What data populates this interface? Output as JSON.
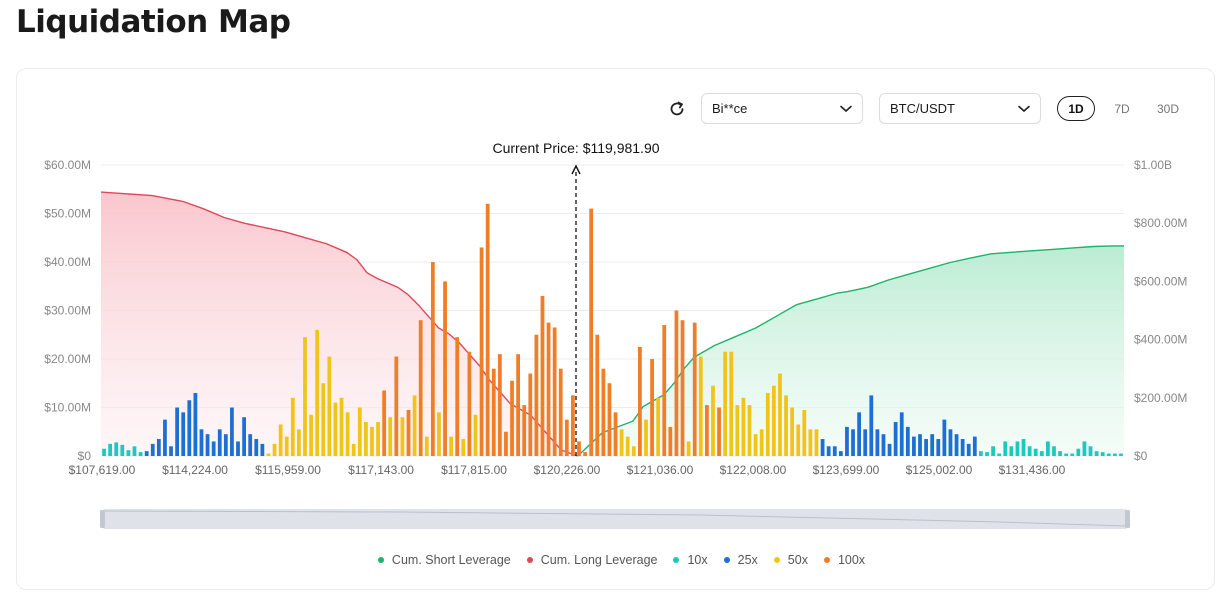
{
  "page": {
    "title": "Liquidation Map"
  },
  "controls": {
    "exchange_value": "Bi**ce",
    "pair_value": "BTC/USDT",
    "timeframes": [
      {
        "label": "1D",
        "active": true
      },
      {
        "label": "7D",
        "active": false
      },
      {
        "label": "30D",
        "active": false
      }
    ],
    "icons": {
      "refresh": "refresh-icon",
      "dropdown": "chevron-down-icon"
    }
  },
  "chart_data": {
    "type": "bar",
    "current_price_label": "Current Price: $119,981.90",
    "current_price": 119981.9,
    "y_left": {
      "ticks": [
        "$0",
        "$10.00M",
        "$20.00M",
        "$30.00M",
        "$40.00M",
        "$50.00M",
        "$60.00M"
      ],
      "max": 60
    },
    "y_right": {
      "ticks": [
        "$0",
        "$200.00M",
        "$400.00M",
        "$600.00M",
        "$800.00M",
        "$1.00B"
      ],
      "max": 1000
    },
    "x_tick_labels": [
      "$107,619.00",
      "$114,224.00",
      "$115,959.00",
      "$117,143.00",
      "$117,815.00",
      "$120,226.00",
      "$121,036.00",
      "$122,008.00",
      "$123,699.00",
      "$125,002.00",
      "$131,436.00"
    ],
    "grid": true,
    "legend_position": "bottom",
    "series_colors": {
      "Cum. Short Leverage": "#1db36b",
      "Cum. Long Leverage": "#e0475a",
      "10x": "#1ec8c0",
      "25x": "#1e6fd4",
      "50x": "#f0c419",
      "100x": "#f07d27"
    },
    "legend": [
      "Cum. Short Leverage",
      "Cum. Long Leverage",
      "10x",
      "25x",
      "50x",
      "100x"
    ],
    "bars": [
      {
        "l": "10x",
        "v": 1.5
      },
      {
        "l": "10x",
        "v": 2.5
      },
      {
        "l": "10x",
        "v": 2.8
      },
      {
        "l": "10x",
        "v": 2.3
      },
      {
        "l": "10x",
        "v": 1.2
      },
      {
        "l": "10x",
        "v": 2
      },
      {
        "l": "10x",
        "v": 0.8
      },
      {
        "l": "25x",
        "v": 1
      },
      {
        "l": "25x",
        "v": 2.5
      },
      {
        "l": "25x",
        "v": 3.5
      },
      {
        "l": "25x",
        "v": 7.5
      },
      {
        "l": "25x",
        "v": 2
      },
      {
        "l": "25x",
        "v": 10
      },
      {
        "l": "25x",
        "v": 9
      },
      {
        "l": "25x",
        "v": 11.5
      },
      {
        "l": "25x",
        "v": 13
      },
      {
        "l": "25x",
        "v": 5.5
      },
      {
        "l": "25x",
        "v": 4.5
      },
      {
        "l": "25x",
        "v": 3
      },
      {
        "l": "25x",
        "v": 5.5
      },
      {
        "l": "25x",
        "v": 4.5
      },
      {
        "l": "25x",
        "v": 10
      },
      {
        "l": "25x",
        "v": 3
      },
      {
        "l": "25x",
        "v": 8
      },
      {
        "l": "25x",
        "v": 4.5
      },
      {
        "l": "25x",
        "v": 3.5
      },
      {
        "l": "25x",
        "v": 2.5
      },
      {
        "l": "50x",
        "v": 0.5
      },
      {
        "l": "50x",
        "v": 2.5
      },
      {
        "l": "50x",
        "v": 6.5
      },
      {
        "l": "50x",
        "v": 4
      },
      {
        "l": "50x",
        "v": 12
      },
      {
        "l": "50x",
        "v": 5.5
      },
      {
        "l": "50x",
        "v": 24.5
      },
      {
        "l": "50x",
        "v": 8.5
      },
      {
        "l": "50x",
        "v": 26
      },
      {
        "l": "50x",
        "v": 15
      },
      {
        "l": "50x",
        "v": 20.5
      },
      {
        "l": "50x",
        "v": 11
      },
      {
        "l": "50x",
        "v": 12
      },
      {
        "l": "50x",
        "v": 9
      },
      {
        "l": "50x",
        "v": 2.5
      },
      {
        "l": "50x",
        "v": 10
      },
      {
        "l": "50x",
        "v": 7
      },
      {
        "l": "50x",
        "v": 6
      },
      {
        "l": "50x",
        "v": 7
      },
      {
        "l": "100x",
        "v": 13.5
      },
      {
        "l": "50x",
        "v": 8
      },
      {
        "l": "100x",
        "v": 20.5
      },
      {
        "l": "50x",
        "v": 8
      },
      {
        "l": "100x",
        "v": 9.5
      },
      {
        "l": "50x",
        "v": 12.5
      },
      {
        "l": "100x",
        "v": 28
      },
      {
        "l": "50x",
        "v": 4
      },
      {
        "l": "100x",
        "v": 40
      },
      {
        "l": "50x",
        "v": 9
      },
      {
        "l": "100x",
        "v": 36
      },
      {
        "l": "50x",
        "v": 4
      },
      {
        "l": "100x",
        "v": 24.5
      },
      {
        "l": "50x",
        "v": 3.5
      },
      {
        "l": "100x",
        "v": 21.5
      },
      {
        "l": "50x",
        "v": 8.5
      },
      {
        "l": "100x",
        "v": 43
      },
      {
        "l": "100x",
        "v": 52
      },
      {
        "l": "100x",
        "v": 18
      },
      {
        "l": "100x",
        "v": 21
      },
      {
        "l": "100x",
        "v": 5
      },
      {
        "l": "100x",
        "v": 15.5
      },
      {
        "l": "100x",
        "v": 21
      },
      {
        "l": "100x",
        "v": 10.5
      },
      {
        "l": "100x",
        "v": 17
      },
      {
        "l": "100x",
        "v": 25
      },
      {
        "l": "100x",
        "v": 33
      },
      {
        "l": "100x",
        "v": 27.5
      },
      {
        "l": "100x",
        "v": 26.5
      },
      {
        "l": "100x",
        "v": 18
      },
      {
        "l": "100x",
        "v": 7.5
      },
      {
        "l": "100x",
        "v": 12.5
      },
      {
        "l": "100x",
        "v": 3
      },
      {
        "l": "100x",
        "v": 0.8
      },
      {
        "l": "100x",
        "v": 51
      },
      {
        "l": "100x",
        "v": 25
      },
      {
        "l": "100x",
        "v": 18
      },
      {
        "l": "100x",
        "v": 15
      },
      {
        "l": "100x",
        "v": 9
      },
      {
        "l": "50x",
        "v": 5.5
      },
      {
        "l": "50x",
        "v": 4
      },
      {
        "l": "50x",
        "v": 2
      },
      {
        "l": "100x",
        "v": 22.5
      },
      {
        "l": "50x",
        "v": 7.5
      },
      {
        "l": "100x",
        "v": 20
      },
      {
        "l": "50x",
        "v": 12
      },
      {
        "l": "100x",
        "v": 27
      },
      {
        "l": "100x",
        "v": 6
      },
      {
        "l": "100x",
        "v": 30
      },
      {
        "l": "100x",
        "v": 28
      },
      {
        "l": "50x",
        "v": 3
      },
      {
        "l": "100x",
        "v": 27.5
      },
      {
        "l": "50x",
        "v": 20.5
      },
      {
        "l": "100x",
        "v": 10.5
      },
      {
        "l": "50x",
        "v": 14.5
      },
      {
        "l": "100x",
        "v": 10
      },
      {
        "l": "50x",
        "v": 21.5
      },
      {
        "l": "50x",
        "v": 21.5
      },
      {
        "l": "50x",
        "v": 10.5
      },
      {
        "l": "50x",
        "v": 12
      },
      {
        "l": "50x",
        "v": 10.5
      },
      {
        "l": "50x",
        "v": 4.5
      },
      {
        "l": "50x",
        "v": 5.5
      },
      {
        "l": "50x",
        "v": 13
      },
      {
        "l": "50x",
        "v": 14.5
      },
      {
        "l": "50x",
        "v": 17
      },
      {
        "l": "50x",
        "v": 12.5
      },
      {
        "l": "50x",
        "v": 10
      },
      {
        "l": "50x",
        "v": 6.5
      },
      {
        "l": "50x",
        "v": 9.5
      },
      {
        "l": "50x",
        "v": 5.5
      },
      {
        "l": "50x",
        "v": 5.5
      },
      {
        "l": "25x",
        "v": 3.5
      },
      {
        "l": "25x",
        "v": 2
      },
      {
        "l": "25x",
        "v": 2
      },
      {
        "l": "25x",
        "v": 1
      },
      {
        "l": "25x",
        "v": 6
      },
      {
        "l": "25x",
        "v": 5.5
      },
      {
        "l": "25x",
        "v": 9
      },
      {
        "l": "25x",
        "v": 5.5
      },
      {
        "l": "25x",
        "v": 12.5
      },
      {
        "l": "25x",
        "v": 5.5
      },
      {
        "l": "25x",
        "v": 4.5
      },
      {
        "l": "25x",
        "v": 2.5
      },
      {
        "l": "25x",
        "v": 7
      },
      {
        "l": "25x",
        "v": 9
      },
      {
        "l": "25x",
        "v": 6
      },
      {
        "l": "25x",
        "v": 4
      },
      {
        "l": "25x",
        "v": 4.5
      },
      {
        "l": "25x",
        "v": 3.5
      },
      {
        "l": "25x",
        "v": 4.5
      },
      {
        "l": "25x",
        "v": 3.5
      },
      {
        "l": "25x",
        "v": 7.5
      },
      {
        "l": "25x",
        "v": 5.5
      },
      {
        "l": "25x",
        "v": 4.5
      },
      {
        "l": "25x",
        "v": 3.5
      },
      {
        "l": "25x",
        "v": 2.5
      },
      {
        "l": "25x",
        "v": 4
      },
      {
        "l": "10x",
        "v": 1
      },
      {
        "l": "10x",
        "v": 0.8
      },
      {
        "l": "10x",
        "v": 2
      },
      {
        "l": "10x",
        "v": 0.5
      },
      {
        "l": "10x",
        "v": 3
      },
      {
        "l": "10x",
        "v": 2
      },
      {
        "l": "10x",
        "v": 3
      },
      {
        "l": "10x",
        "v": 3.5
      },
      {
        "l": "10x",
        "v": 2
      },
      {
        "l": "10x",
        "v": 1.5
      },
      {
        "l": "10x",
        "v": 1
      },
      {
        "l": "10x",
        "v": 3
      },
      {
        "l": "10x",
        "v": 2
      },
      {
        "l": "10x",
        "v": 1
      },
      {
        "l": "10x",
        "v": 0.5
      },
      {
        "l": "10x",
        "v": 0.5
      },
      {
        "l": "10x",
        "v": 1.5
      },
      {
        "l": "10x",
        "v": 3
      },
      {
        "l": "10x",
        "v": 2
      },
      {
        "l": "10x",
        "v": 1
      },
      {
        "l": "10x",
        "v": 0.8
      },
      {
        "l": "10x",
        "v": 0.5
      },
      {
        "l": "10x",
        "v": 0.5
      },
      {
        "l": "10x",
        "v": 0.5
      }
    ],
    "cum_long": [
      [
        0,
        907
      ],
      [
        0.05,
        895
      ],
      [
        0.08,
        875
      ],
      [
        0.1,
        850
      ],
      [
        0.12,
        820
      ],
      [
        0.14,
        800
      ],
      [
        0.16,
        785
      ],
      [
        0.18,
        770
      ],
      [
        0.2,
        750
      ],
      [
        0.22,
        730
      ],
      [
        0.24,
        700
      ],
      [
        0.25,
        675
      ],
      [
        0.26,
        630
      ],
      [
        0.27,
        610
      ],
      [
        0.29,
        580
      ],
      [
        0.3,
        555
      ],
      [
        0.31,
        520
      ],
      [
        0.32,
        480
      ],
      [
        0.33,
        440
      ],
      [
        0.34,
        420
      ],
      [
        0.35,
        390
      ],
      [
        0.36,
        350
      ],
      [
        0.37,
        310
      ],
      [
        0.38,
        260
      ],
      [
        0.39,
        220
      ],
      [
        0.4,
        180
      ],
      [
        0.41,
        160
      ],
      [
        0.42,
        140
      ],
      [
        0.43,
        100
      ],
      [
        0.44,
        60
      ],
      [
        0.45,
        20
      ],
      [
        0.466,
        0
      ]
    ],
    "cum_short": [
      [
        0.466,
        0
      ],
      [
        0.49,
        80
      ],
      [
        0.52,
        120
      ],
      [
        0.53,
        170
      ],
      [
        0.55,
        210
      ],
      [
        0.56,
        250
      ],
      [
        0.57,
        300
      ],
      [
        0.58,
        340
      ],
      [
        0.6,
        380
      ],
      [
        0.62,
        410
      ],
      [
        0.64,
        440
      ],
      [
        0.66,
        480
      ],
      [
        0.68,
        520
      ],
      [
        0.7,
        540
      ],
      [
        0.72,
        560
      ],
      [
        0.73,
        565
      ],
      [
        0.75,
        580
      ],
      [
        0.77,
        605
      ],
      [
        0.79,
        625
      ],
      [
        0.81,
        645
      ],
      [
        0.83,
        665
      ],
      [
        0.85,
        680
      ],
      [
        0.87,
        695
      ],
      [
        0.89,
        700
      ],
      [
        0.91,
        705
      ],
      [
        0.93,
        710
      ],
      [
        0.95,
        715
      ],
      [
        0.97,
        720
      ],
      [
        0.99,
        722
      ],
      [
        1,
        722
      ]
    ]
  }
}
